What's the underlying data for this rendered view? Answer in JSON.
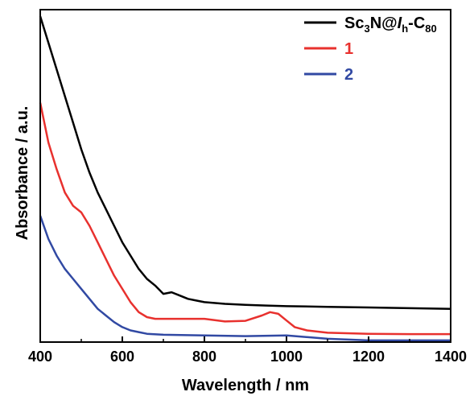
{
  "chart_data": {
    "type": "line",
    "title": "",
    "xlabel": "Wavelength / nm",
    "ylabel": "Absorbance / a.u.",
    "xlim": [
      400,
      1400
    ],
    "ylim": [
      0,
      1.0
    ],
    "x_ticks": [
      400,
      600,
      800,
      1000,
      1200,
      1400
    ],
    "y_ticks_labeled": false,
    "grid": false,
    "legend_position": "top-right",
    "series": [
      {
        "name": "Sc3N@Ih-C80",
        "legend": {
          "prefix": "Sc",
          "sub1": "3",
          "mid": "N@",
          "italic": "I",
          "sub2": "h",
          "dash": "-C",
          "sub3": "80"
        },
        "color": "#000000",
        "x": [
          400,
          420,
          440,
          460,
          480,
          500,
          520,
          540,
          560,
          580,
          600,
          620,
          640,
          660,
          680,
          700,
          720,
          740,
          760,
          780,
          800,
          850,
          900,
          950,
          1000,
          1100,
          1200,
          1300,
          1400
        ],
        "values": [
          0.98,
          0.9,
          0.82,
          0.74,
          0.66,
          0.58,
          0.51,
          0.45,
          0.4,
          0.35,
          0.3,
          0.26,
          0.22,
          0.19,
          0.17,
          0.145,
          0.15,
          0.14,
          0.13,
          0.125,
          0.12,
          0.115,
          0.112,
          0.11,
          0.108,
          0.106,
          0.104,
          0.102,
          0.1
        ]
      },
      {
        "name": "1",
        "color": "#e8312e",
        "x": [
          400,
          420,
          440,
          460,
          480,
          500,
          520,
          540,
          560,
          580,
          600,
          620,
          640,
          660,
          680,
          700,
          750,
          800,
          850,
          900,
          940,
          960,
          980,
          1000,
          1020,
          1050,
          1100,
          1200,
          1300,
          1400
        ],
        "values": [
          0.72,
          0.6,
          0.52,
          0.45,
          0.41,
          0.39,
          0.35,
          0.3,
          0.25,
          0.2,
          0.16,
          0.12,
          0.09,
          0.075,
          0.07,
          0.07,
          0.07,
          0.07,
          0.062,
          0.064,
          0.08,
          0.09,
          0.085,
          0.065,
          0.045,
          0.035,
          0.028,
          0.025,
          0.024,
          0.024
        ]
      },
      {
        "name": "2",
        "color": "#3149a3",
        "x": [
          400,
          420,
          440,
          460,
          480,
          500,
          520,
          540,
          560,
          580,
          600,
          620,
          640,
          660,
          700,
          800,
          900,
          1000,
          1100,
          1200,
          1300,
          1400
        ],
        "values": [
          0.38,
          0.31,
          0.26,
          0.22,
          0.19,
          0.16,
          0.13,
          0.1,
          0.08,
          0.06,
          0.045,
          0.035,
          0.03,
          0.025,
          0.022,
          0.02,
          0.018,
          0.02,
          0.01,
          0.005,
          0.005,
          0.005
        ]
      }
    ]
  }
}
